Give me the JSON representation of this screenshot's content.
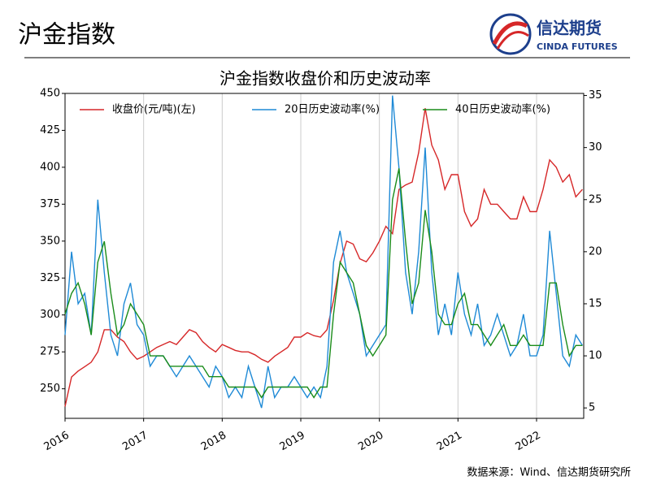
{
  "header": {
    "title": "沪金指数",
    "logo_cn": "信达期货",
    "logo_en": "CINDA FUTURES"
  },
  "source": "数据来源：Wind、信达期货研究所",
  "chart_data": {
    "type": "line",
    "title": "沪金指数收盘价和历史波动率",
    "x": [
      2016,
      2016.083,
      2016.167,
      2016.25,
      2016.333,
      2016.417,
      2016.5,
      2016.583,
      2016.667,
      2016.75,
      2016.833,
      2016.917,
      2017,
      2017.083,
      2017.167,
      2017.25,
      2017.333,
      2017.417,
      2017.5,
      2017.583,
      2017.667,
      2017.75,
      2017.833,
      2017.917,
      2018,
      2018.083,
      2018.167,
      2018.25,
      2018.333,
      2018.417,
      2018.5,
      2018.583,
      2018.667,
      2018.75,
      2018.833,
      2018.917,
      2019,
      2019.083,
      2019.167,
      2019.25,
      2019.333,
      2019.417,
      2019.5,
      2019.583,
      2019.667,
      2019.75,
      2019.833,
      2019.917,
      2020,
      2020.083,
      2020.167,
      2020.25,
      2020.333,
      2020.417,
      2020.5,
      2020.583,
      2020.667,
      2020.75,
      2020.833,
      2020.917,
      2021,
      2021.083,
      2021.167,
      2021.25,
      2021.333,
      2021.417,
      2021.5,
      2021.583,
      2021.667,
      2021.75,
      2021.833,
      2021.917,
      2022,
      2022.083,
      2022.167,
      2022.25,
      2022.333,
      2022.417,
      2022.5,
      2022.583
    ],
    "series": [
      {
        "name": "收盘价(元/吨)(左)",
        "color": "#d62728",
        "axis": "y",
        "values": [
          238,
          258,
          262,
          265,
          268,
          275,
          290,
          290,
          285,
          282,
          275,
          270,
          272,
          275,
          278,
          280,
          282,
          280,
          285,
          290,
          288,
          282,
          278,
          275,
          280,
          278,
          276,
          275,
          275,
          273,
          270,
          268,
          272,
          275,
          278,
          285,
          285,
          288,
          286,
          285,
          290,
          310,
          335,
          350,
          348,
          338,
          336,
          342,
          350,
          360,
          355,
          385,
          388,
          390,
          410,
          440,
          415,
          405,
          385,
          395,
          395,
          370,
          360,
          365,
          385,
          375,
          375,
          370,
          365,
          365,
          380,
          370,
          370,
          385,
          405,
          400,
          390,
          395,
          380,
          385
        ]
      },
      {
        "name": "20日历史波动率(%)",
        "color": "#1f8ad6",
        "axis": "y2",
        "values": [
          12,
          20,
          15,
          16,
          12,
          25,
          18,
          12,
          10,
          15,
          17,
          13,
          12,
          9,
          10,
          10,
          9,
          8,
          9,
          10,
          9,
          8,
          7,
          9,
          8,
          6,
          7,
          6,
          9,
          7,
          5,
          9,
          6,
          7,
          7,
          8,
          7,
          6,
          7,
          6,
          9,
          19,
          22,
          18,
          16,
          14,
          10,
          11,
          12,
          13,
          35,
          28,
          18,
          14,
          20,
          30,
          18,
          12,
          15,
          12,
          18,
          14,
          12,
          15,
          11,
          12,
          14,
          12,
          10,
          11,
          14,
          10,
          10,
          12,
          22,
          16,
          10,
          9,
          12,
          11
        ]
      },
      {
        "name": "40日历史波动率(%)",
        "color": "#1a8c1a",
        "axis": "y2",
        "values": [
          14,
          16,
          17,
          15,
          12,
          19,
          21,
          16,
          12,
          13,
          15,
          14,
          13,
          10,
          10,
          10,
          9,
          9,
          9,
          9,
          9,
          9,
          8,
          8,
          8,
          7,
          7,
          7,
          7,
          7,
          6,
          7,
          7,
          7,
          7,
          7,
          7,
          7,
          6,
          7,
          7,
          14,
          19,
          18,
          17,
          14,
          11,
          10,
          11,
          12,
          25,
          28,
          21,
          15,
          17,
          24,
          20,
          14,
          13,
          13,
          15,
          16,
          13,
          13,
          12,
          11,
          12,
          13,
          11,
          11,
          12,
          11,
          11,
          11,
          17,
          17,
          13,
          10,
          11,
          11
        ]
      }
    ],
    "xlim": [
      2016,
      2022.6
    ],
    "xticks": [
      2016,
      2017,
      2018,
      2019,
      2020,
      2021,
      2022
    ],
    "ylim": [
      230,
      450
    ],
    "yticks": [
      250,
      275,
      300,
      325,
      350,
      375,
      400,
      425,
      450
    ],
    "y2lim": [
      4,
      35.2
    ],
    "y2ticks": [
      5,
      10,
      15,
      20,
      25,
      30,
      35
    ],
    "grid": "x",
    "legend": "top"
  }
}
